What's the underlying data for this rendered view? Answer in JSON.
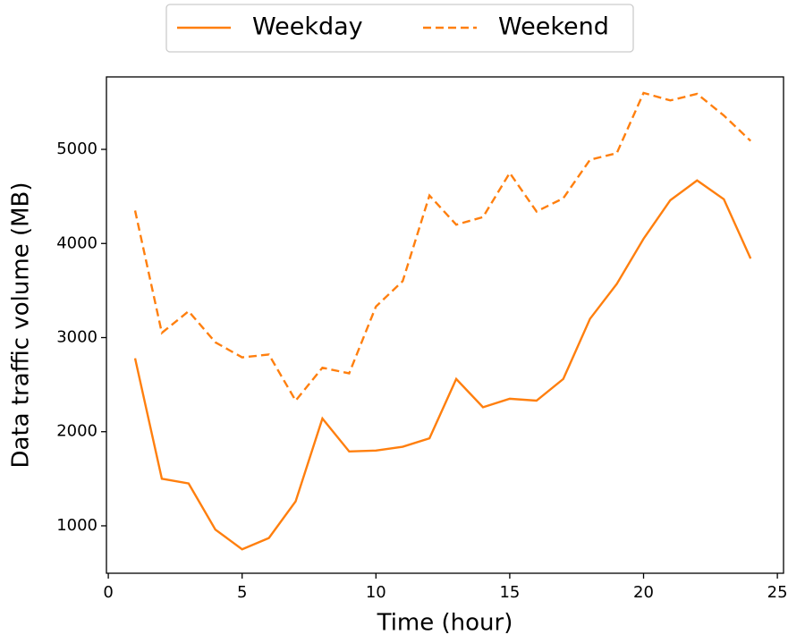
{
  "chart_data": {
    "type": "line",
    "x": [
      1,
      2,
      3,
      4,
      5,
      6,
      7,
      8,
      9,
      10,
      11,
      12,
      13,
      14,
      15,
      16,
      17,
      18,
      19,
      20,
      21,
      22,
      23,
      24
    ],
    "series": [
      {
        "name": "Weekday",
        "color": "#ff7f0e",
        "linestyle": "solid",
        "values": [
          2780,
          1500,
          1450,
          960,
          750,
          870,
          1260,
          2140,
          1790,
          1800,
          1840,
          1930,
          2560,
          2260,
          2350,
          2330,
          2560,
          3200,
          3570,
          4050,
          4460,
          4670,
          4470,
          3840
        ]
      },
      {
        "name": "Weekend",
        "color": "#ff7f0e",
        "linestyle": "dashed",
        "values": [
          4350,
          3050,
          3280,
          2950,
          2790,
          2820,
          2330,
          2680,
          2620,
          3330,
          3600,
          4510,
          4200,
          4280,
          4750,
          4340,
          4480,
          4890,
          4960,
          5600,
          5520,
          5590,
          5360,
          5090
        ]
      }
    ],
    "xlabel": "Time (hour)",
    "ylabel": "Data traffic volume (MB)",
    "xlim": [
      -0.07,
      25.23
    ],
    "ylim": [
      496,
      5770
    ],
    "xticks": [
      0,
      5,
      10,
      15,
      20,
      25
    ],
    "yticks": [
      1000,
      2000,
      3000,
      4000,
      5000
    ],
    "legend": "top",
    "grid": false
  }
}
